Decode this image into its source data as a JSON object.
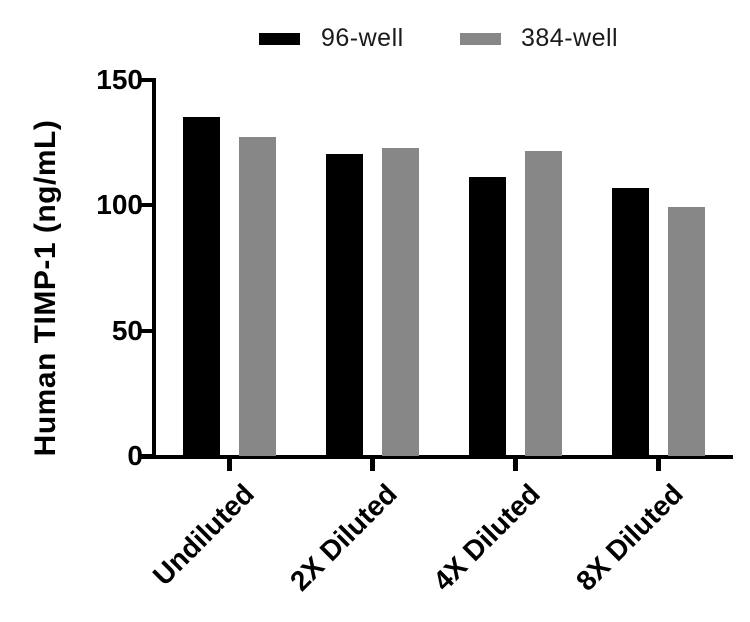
{
  "figure": {
    "background": "#ffffff",
    "axis_color": "#000000"
  },
  "legend": {
    "items": [
      {
        "label": "96-well",
        "color": "#000000"
      },
      {
        "label": "384-well",
        "color": "#878787"
      }
    ]
  },
  "chart_data": {
    "type": "bar",
    "title": "",
    "xlabel": "",
    "ylabel": "Human TIMP-1 (ng/mL)",
    "categories": [
      "Undiluted",
      "2X Diluted",
      "4X Diluted",
      "8X Diluted"
    ],
    "series": [
      {
        "name": "96-well",
        "color": "#000000",
        "values": [
          135.4,
          120.5,
          111.4,
          107.0
        ]
      },
      {
        "name": "384-well",
        "color": "#878787",
        "values": [
          127.3,
          122.9,
          121.8,
          99.5
        ]
      }
    ],
    "ylim": [
      0,
      150
    ],
    "yticks": [
      0,
      50,
      100,
      150
    ],
    "grid": false,
    "legend_position": "top",
    "bar_orientation": "vertical"
  }
}
